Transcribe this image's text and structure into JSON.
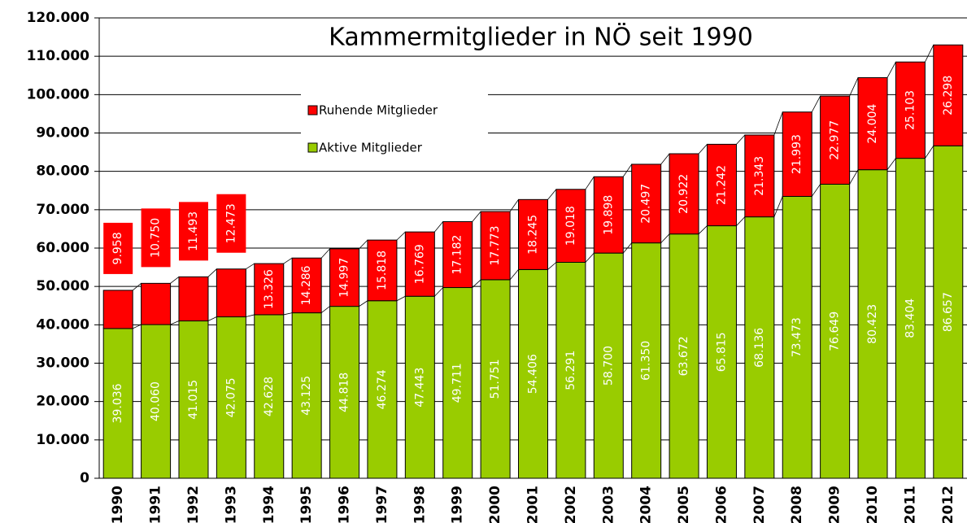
{
  "chart_data": {
    "type": "stacked_bar",
    "title": "Kammermitglieder in NÖ seit 1990",
    "categories": [
      "1990",
      "1991",
      "1992",
      "1993",
      "1994",
      "1995",
      "1996",
      "1997",
      "1998",
      "1999",
      "2000",
      "2001",
      "2002",
      "2003",
      "2004",
      "2005",
      "2006",
      "2007",
      "2008",
      "2009",
      "2010",
      "2011",
      "2012"
    ],
    "series": [
      {
        "name": "Aktive Mitglieder",
        "color": "#99cc00",
        "values": [
          39036,
          40060,
          41015,
          42075,
          42628,
          43125,
          44818,
          46274,
          47443,
          49711,
          51751,
          54406,
          56291,
          58700,
          61350,
          63672,
          65815,
          68136,
          73473,
          76649,
          80423,
          83404,
          86657
        ],
        "value_labels": [
          "39.036",
          "40.060",
          "41.015",
          "42.075",
          "42.628",
          "43.125",
          "44.818",
          "46.274",
          "47.443",
          "49.711",
          "51.751",
          "54.406",
          "56.291",
          "58.700",
          "61.350",
          "63.672",
          "65.815",
          "68.136",
          "73.473",
          "76.649",
          "80.423",
          "83.404",
          "86.657"
        ]
      },
      {
        "name": "Ruhende Mitglieder",
        "color": "#ff0000",
        "values": [
          9958,
          10750,
          11493,
          12473,
          13326,
          14286,
          14997,
          15818,
          16769,
          17182,
          17773,
          18245,
          19018,
          19898,
          20497,
          20922,
          21242,
          21343,
          21993,
          22977,
          24004,
          25103,
          26298
        ],
        "value_labels": [
          "9.958",
          "10.750",
          "11.493",
          "12.473",
          "13.326",
          "14.286",
          "14.997",
          "15.818",
          "16.769",
          "17.182",
          "17.773",
          "18.245",
          "19.018",
          "19.898",
          "20.497",
          "20.922",
          "21.242",
          "21.343",
          "21.993",
          "22.977",
          "24.004",
          "25.103",
          "26.298"
        ]
      }
    ],
    "ylim": [
      0,
      120000
    ],
    "yticks": [
      0,
      {
        "value": 10000,
        "label": "10.000"
      },
      {
        "value": 20000,
        "label": "20.000"
      },
      {
        "value": 30000,
        "label": "30.000"
      },
      {
        "value": 40000,
        "label": "40.000"
      },
      {
        "value": 50000,
        "label": "50.000"
      },
      {
        "value": 60000,
        "label": "60.000"
      },
      {
        "value": 70000,
        "label": "70.000"
      },
      {
        "value": 80000,
        "label": "80.000"
      },
      {
        "value": 90000,
        "label": "90.000"
      },
      {
        "value": 100000,
        "label": "100.000"
      },
      {
        "value": 110000,
        "label": "110.000"
      },
      {
        "value": 120000,
        "label": "120.000"
      }
    ],
    "grid": true
  }
}
